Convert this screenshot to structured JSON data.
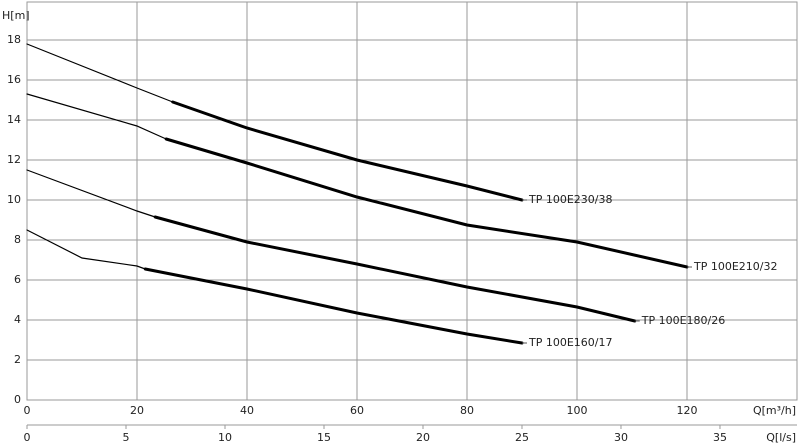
{
  "chart_data": {
    "type": "line",
    "y_label": "H[m]",
    "x_label": "Q[m³/h]",
    "x2_label": "Q[l/s]",
    "xlim": [
      0,
      140
    ],
    "xticks": [
      0,
      20,
      40,
      60,
      80,
      100,
      120
    ],
    "x2lim": [
      0,
      38.89
    ],
    "x2ticks": [
      0,
      5,
      10,
      15,
      20,
      25,
      30,
      35
    ],
    "ylim": [
      0,
      20
    ],
    "yticks": [
      0,
      2,
      4,
      6,
      8,
      10,
      12,
      14,
      16,
      18
    ],
    "grid": true,
    "series": [
      {
        "name": "TP 100E230/38",
        "color": "#000000",
        "thick_from": 26.5,
        "x": [
          0,
          20,
          26.5,
          40,
          60,
          80,
          90
        ],
        "values": [
          17.8,
          15.6,
          14.9,
          13.6,
          12.0,
          10.7,
          10.0
        ]
      },
      {
        "name": "TP 100E210/32",
        "color": "#000000",
        "thick_from": 25.3,
        "x": [
          0,
          20,
          25.3,
          40,
          60,
          80,
          100,
          120
        ],
        "values": [
          15.3,
          13.7,
          13.05,
          11.85,
          10.15,
          8.75,
          7.9,
          6.65
        ]
      },
      {
        "name": "TP 100E180/26",
        "color": "#000000",
        "thick_from": 23.3,
        "x": [
          0,
          20,
          23.3,
          40,
          60,
          80,
          100,
          110.5
        ],
        "values": [
          11.5,
          9.45,
          9.15,
          7.9,
          6.8,
          5.65,
          4.65,
          3.95
        ]
      },
      {
        "name": "TP 100E160/17",
        "color": "#000000",
        "thick_from": 21.5,
        "x": [
          0,
          10,
          20,
          21.5,
          40,
          60,
          80,
          90
        ],
        "values": [
          8.5,
          7.1,
          6.7,
          6.55,
          5.55,
          4.35,
          3.3,
          2.85
        ]
      }
    ]
  }
}
